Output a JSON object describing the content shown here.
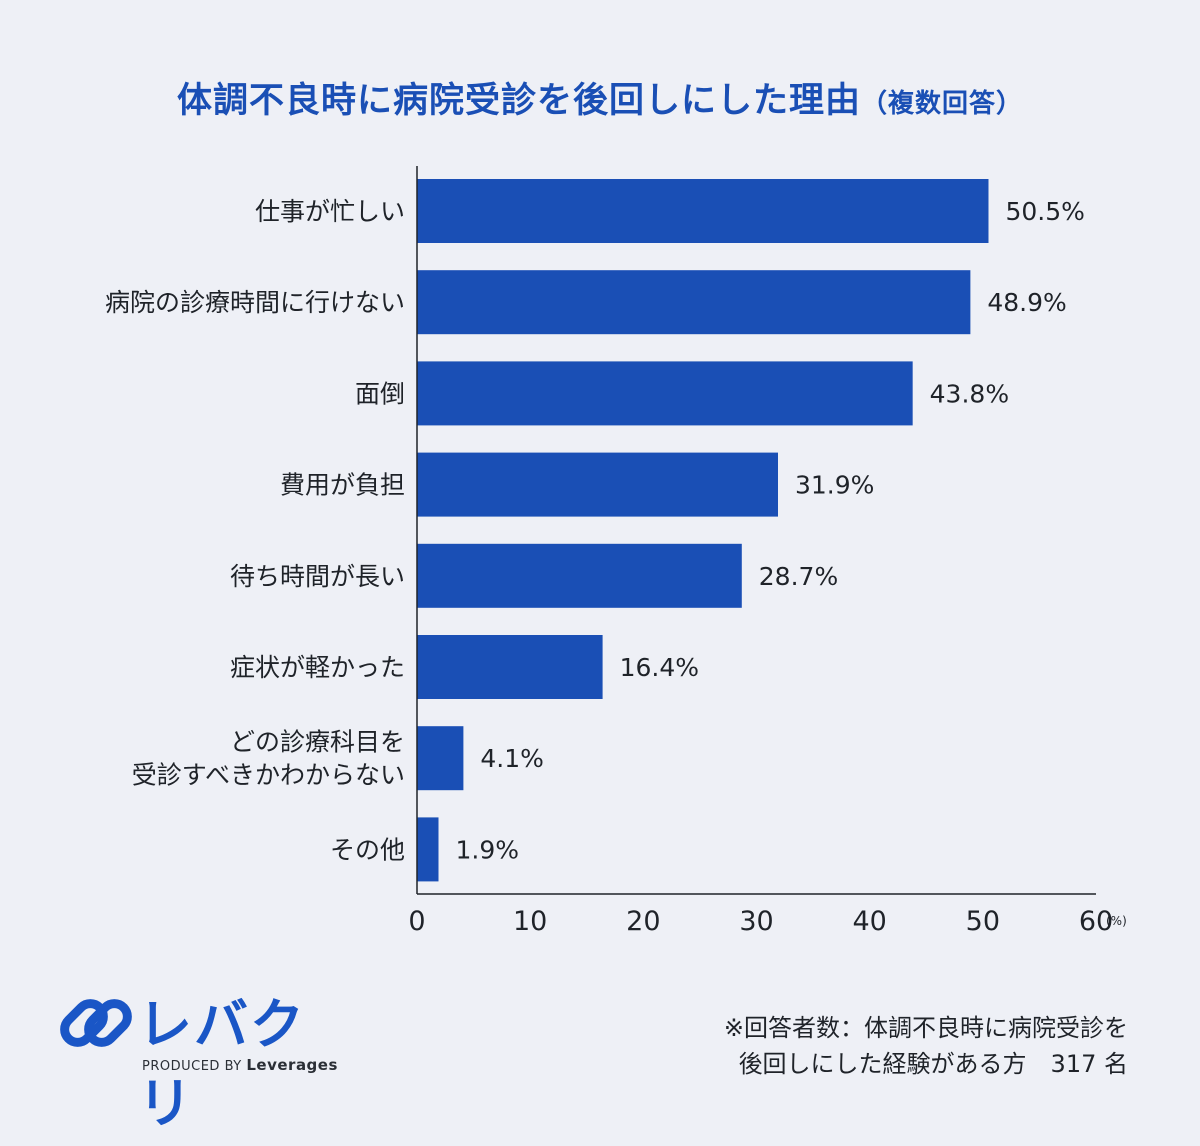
{
  "chart_data": {
    "type": "bar",
    "orientation": "horizontal",
    "title": "体調不良時に病院受診を後回しにした理由",
    "subtitle": "（複数回答）",
    "categories": [
      "仕事が忙しい",
      "病院の診療時間に行けない",
      "面倒",
      "費用が負担",
      "待ち時間が長い",
      "症状が軽かった",
      "どの診療科目を\n受診すべきかわからない",
      "その他"
    ],
    "values": [
      50.5,
      48.9,
      43.8,
      31.9,
      28.7,
      16.4,
      4.1,
      1.9
    ],
    "value_labels": [
      "50.5%",
      "48.9%",
      "43.8%",
      "31.9%",
      "28.7%",
      "16.4%",
      "4.1%",
      "1.9%"
    ],
    "xlim": [
      0,
      60
    ],
    "xticks": [
      0,
      10,
      20,
      30,
      40,
      50,
      60
    ],
    "xunit": "(%)",
    "bar_color": "#1a4fb5",
    "grid": false
  },
  "logo": {
    "name": "レバクリ",
    "tagline_prefix": "PRODUCED BY",
    "tagline_brand": "Leverages"
  },
  "footnote": {
    "line1": "※回答者数：体調不良時に病院受診を",
    "line2": "後回しにした経験がある方　317 名"
  },
  "colors": {
    "accent": "#1a4fb5",
    "background": "#eef0f6",
    "text": "#1f2329"
  }
}
